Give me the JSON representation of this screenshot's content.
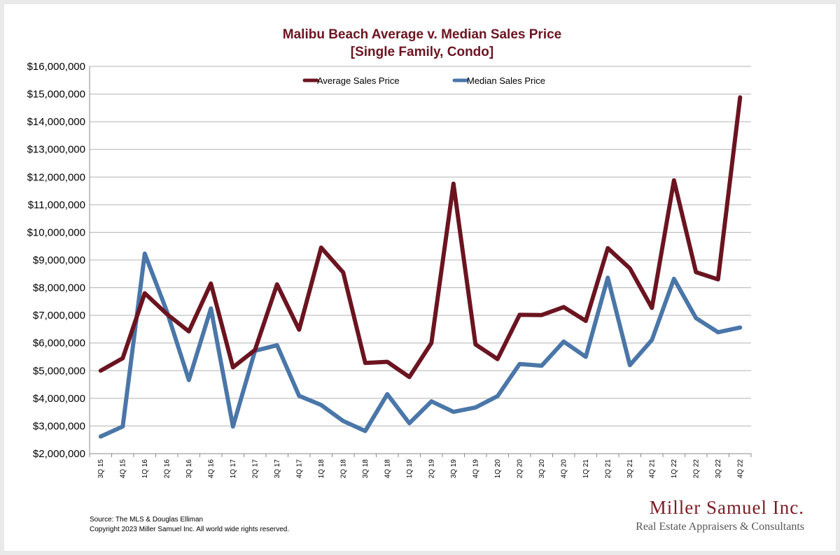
{
  "chart_data": {
    "type": "line",
    "title": "Malibu Beach Average v. Median Sales Price",
    "subtitle": "[Single Family, Condo]",
    "categories": [
      "3Q 15",
      "4Q 15",
      "1Q 16",
      "2Q 16",
      "3Q 16",
      "4Q 16",
      "1Q 17",
      "2Q 17",
      "3Q 17",
      "4Q 17",
      "1Q 18",
      "2Q 18",
      "3Q 18",
      "4Q 18",
      "1Q 19",
      "2Q 19",
      "3Q 19",
      "4Q 19",
      "1Q 20",
      "2Q 20",
      "3Q 20",
      "4Q 20",
      "1Q 21",
      "2Q 21",
      "3Q 21",
      "4Q 21",
      "1Q 22",
      "2Q 22",
      "3Q 22",
      "4Q 22"
    ],
    "series": [
      {
        "name": "Average Sales Price",
        "color": "#6b1420",
        "values": [
          5000000,
          5450000,
          7800000,
          7050000,
          6420000,
          8150000,
          5120000,
          5750000,
          8120000,
          6480000,
          9450000,
          8550000,
          5280000,
          5320000,
          4770000,
          6000000,
          11760000,
          5950000,
          5420000,
          7020000,
          7010000,
          7300000,
          6800000,
          9430000,
          8700000,
          7270000,
          11880000,
          8560000,
          8300000,
          14880000
        ]
      },
      {
        "name": "Median Sales Price",
        "color": "#4a76a8",
        "values": [
          2620000,
          2980000,
          9230000,
          7150000,
          4660000,
          7250000,
          2980000,
          5720000,
          5920000,
          4090000,
          3760000,
          3180000,
          2820000,
          4150000,
          3100000,
          3890000,
          3510000,
          3670000,
          4080000,
          5240000,
          5180000,
          6050000,
          5500000,
          8360000,
          5200000,
          6110000,
          8320000,
          6900000,
          6390000,
          6560000
        ]
      }
    ],
    "ylim": [
      2000000,
      16000000
    ],
    "yticks": [
      "$2,000,000",
      "$3,000,000",
      "$4,000,000",
      "$5,000,000",
      "$6,000,000",
      "$7,000,000",
      "$8,000,000",
      "$9,000,000",
      "$10,000,000",
      "$11,000,000",
      "$12,000,000",
      "$13,000,000",
      "$14,000,000",
      "$15,000,000",
      "$16,000,000"
    ],
    "grid": true,
    "legend_position": "top-center"
  },
  "footer": {
    "source": "Source: The MLS & Douglas Elliman",
    "copyright": "Copyright 2023 Miller Samuel Inc.  All world wide rights reserved."
  },
  "brand": {
    "name": "Miller Samuel Inc.",
    "tagline": "Real Estate Appraisers & Consultants"
  }
}
